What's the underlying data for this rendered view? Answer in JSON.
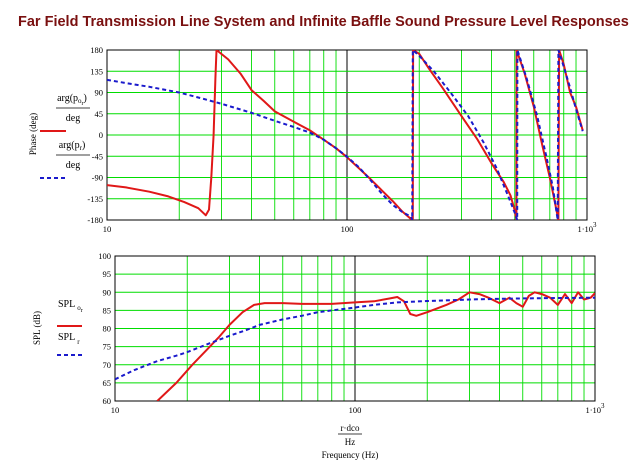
{
  "title": "Far Field Transmission Line System and Infinite Baffle Sound Pressure Level Responses",
  "colors": {
    "red": "#e01818",
    "blue": "#1a1acc",
    "grid": "#00dd00",
    "title": "#7a1010"
  },
  "chart_data": [
    {
      "type": "line",
      "x_scale": "log",
      "xlim": [
        10,
        1000
      ],
      "ylim": [
        -180,
        180
      ],
      "grid": true,
      "ylabel": "Phase (deg)",
      "xlabel": "",
      "xticks": [
        10,
        100,
        1000
      ],
      "xtick_labels": [
        "10",
        "100",
        "1·10³"
      ],
      "yticks": [
        -180,
        -135,
        -90,
        -45,
        0,
        45,
        90,
        135,
        180
      ],
      "ytick_labels": [
        "-180",
        "-135",
        "-90",
        "-45",
        "0",
        "45",
        "90",
        "135",
        "180"
      ],
      "series": [
        {
          "name": "arg(p_or)/deg",
          "color": "#e01818",
          "dash": "solid",
          "points": [
            [
              10,
              -106
            ],
            [
              12,
              -111
            ],
            [
              15,
              -120
            ],
            [
              18,
              -130
            ],
            [
              21,
              -142
            ],
            [
              24,
              -155
            ],
            [
              25.8,
              -170
            ],
            [
              26.6,
              -158
            ],
            [
              27.2,
              -90
            ],
            [
              27.8,
              0
            ],
            [
              28.3,
              120
            ],
            [
              28.6,
              180
            ],
            [
              32,
              160
            ],
            [
              36,
              130
            ],
            [
              40,
              95
            ],
            [
              45,
              72
            ],
            [
              50,
              50
            ],
            [
              60,
              28
            ],
            [
              70,
              10
            ],
            [
              80,
              -10
            ],
            [
              90,
              -28
            ],
            [
              100,
              -47
            ],
            [
              112,
              -70
            ],
            [
              125,
              -93
            ],
            [
              140,
              -118
            ],
            [
              155,
              -140
            ],
            [
              170,
              -162
            ],
            [
              185,
              -178
            ],
            [
              188,
              -180
            ],
            [
              188.5,
              180
            ],
            [
              200,
              172
            ],
            [
              220,
              140
            ],
            [
              250,
              100
            ],
            [
              300,
              40
            ],
            [
              350,
              -10
            ],
            [
              400,
              -60
            ],
            [
              450,
              -100
            ],
            [
              480,
              -128
            ],
            [
              500,
              -160
            ],
            [
              508,
              -180
            ],
            [
              509,
              180
            ],
            [
              550,
              130
            ],
            [
              600,
              60
            ],
            [
              650,
              -20
            ],
            [
              700,
              -90
            ],
            [
              740,
              -150
            ],
            [
              760,
              -180
            ],
            [
              765,
              180
            ],
            [
              800,
              150
            ],
            [
              850,
              90
            ],
            [
              900,
              60
            ],
            [
              960,
              10
            ]
          ]
        },
        {
          "name": "arg(p_r)/deg",
          "color": "#1a1acc",
          "dash": "dashed",
          "points": [
            [
              10,
              117
            ],
            [
              12,
              110
            ],
            [
              15,
              102
            ],
            [
              20,
              90
            ],
            [
              25,
              77
            ],
            [
              30,
              66
            ],
            [
              40,
              47
            ],
            [
              50,
              30
            ],
            [
              60,
              17
            ],
            [
              70,
              5
            ],
            [
              80,
              -10
            ],
            [
              90,
              -28
            ],
            [
              100,
              -46
            ],
            [
              112,
              -68
            ],
            [
              125,
              -95
            ],
            [
              140,
              -125
            ],
            [
              155,
              -148
            ],
            [
              170,
              -163
            ],
            [
              185,
              -173
            ],
            [
              187,
              -180
            ],
            [
              188,
              180
            ],
            [
              200,
              168
            ],
            [
              230,
              135
            ],
            [
              270,
              90
            ],
            [
              320,
              40
            ],
            [
              370,
              -15
            ],
            [
              420,
              -70
            ],
            [
              470,
              -130
            ],
            [
              500,
              -165
            ],
            [
              512,
              -180
            ],
            [
              513,
              180
            ],
            [
              560,
              120
            ],
            [
              620,
              40
            ],
            [
              680,
              -50
            ],
            [
              720,
              -110
            ],
            [
              755,
              -180
            ],
            [
              760,
              180
            ],
            [
              800,
              145
            ],
            [
              850,
              100
            ],
            [
              900,
              55
            ],
            [
              960,
              8
            ]
          ]
        }
      ]
    },
    {
      "type": "line",
      "x_scale": "log",
      "xlim": [
        10,
        1000
      ],
      "ylim": [
        60,
        100
      ],
      "grid": true,
      "ylabel": "SPL (dB)",
      "xlabel": "Frequency (Hz)",
      "xlabel_formula_num": "r·dco",
      "xlabel_formula_den": "Hz",
      "xticks": [
        10,
        100,
        1000
      ],
      "xtick_labels": [
        "10",
        "100",
        "1·10³"
      ],
      "yticks": [
        60,
        65,
        70,
        75,
        80,
        85,
        90,
        95,
        100
      ],
      "ytick_labels": [
        "60",
        "65",
        "70",
        "75",
        "80",
        "85",
        "90",
        "95",
        "100"
      ],
      "series": [
        {
          "name": "SPL_or",
          "color": "#e01818",
          "dash": "solid",
          "points": [
            [
              15,
              60
            ],
            [
              18,
              65
            ],
            [
              21,
              70
            ],
            [
              24,
              74
            ],
            [
              27,
              77.5
            ],
            [
              30,
              81
            ],
            [
              34,
              84.5
            ],
            [
              38,
              86.5
            ],
            [
              42,
              87
            ],
            [
              50,
              87
            ],
            [
              60,
              86.8
            ],
            [
              80,
              86.8
            ],
            [
              100,
              87.2
            ],
            [
              120,
              87.5
            ],
            [
              140,
              88.3
            ],
            [
              150,
              88.7
            ],
            [
              160,
              87.5
            ],
            [
              170,
              84
            ],
            [
              180,
              83.5
            ],
            [
              200,
              84.5
            ],
            [
              240,
              86.5
            ],
            [
              270,
              88
            ],
            [
              300,
              90
            ],
            [
              330,
              89.5
            ],
            [
              360,
              88.5
            ],
            [
              400,
              87
            ],
            [
              440,
              88.5
            ],
            [
              470,
              87
            ],
            [
              500,
              86
            ],
            [
              530,
              89
            ],
            [
              560,
              90
            ],
            [
              600,
              89.5
            ],
            [
              650,
              88.5
            ],
            [
              700,
              86.5
            ],
            [
              750,
              89.5
            ],
            [
              800,
              87
            ],
            [
              850,
              90
            ],
            [
              900,
              88
            ],
            [
              960,
              88.5
            ],
            [
              1000,
              89.8
            ]
          ]
        },
        {
          "name": "SPL_r",
          "color": "#1a1acc",
          "dash": "dashed",
          "points": [
            [
              10,
              66
            ],
            [
              12,
              68.5
            ],
            [
              15,
              71
            ],
            [
              18,
              72.5
            ],
            [
              20,
              73.5
            ],
            [
              25,
              76
            ],
            [
              30,
              78
            ],
            [
              35,
              79.5
            ],
            [
              40,
              81
            ],
            [
              50,
              82.5
            ],
            [
              60,
              83.5
            ],
            [
              70,
              84.5
            ],
            [
              80,
              85
            ],
            [
              100,
              85.8
            ],
            [
              120,
              86.5
            ],
            [
              150,
              87.2
            ],
            [
              200,
              87.6
            ],
            [
              300,
              88
            ],
            [
              400,
              88.2
            ],
            [
              500,
              88.3
            ],
            [
              700,
              88.4
            ],
            [
              1000,
              88.5
            ]
          ]
        }
      ]
    }
  ]
}
